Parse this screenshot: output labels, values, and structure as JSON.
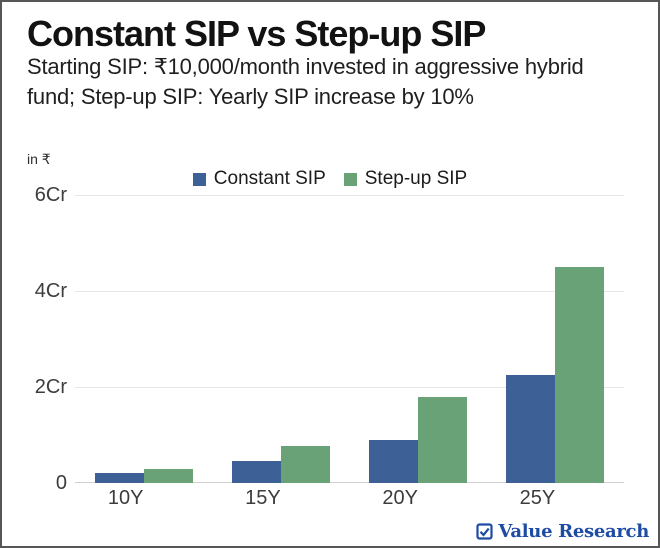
{
  "header": {
    "title": "Constant SIP vs Step-up SIP",
    "subtitle_lines": [
      "Starting SIP: ₹10,000/month invested in aggressive hybrid",
      "fund; Step-up SIP: Yearly SIP increase by 10%"
    ]
  },
  "chart_data": {
    "type": "bar",
    "title": "Constant SIP vs Step-up SIP",
    "unit_label": "in ₹",
    "categories": [
      "10Y",
      "15Y",
      "20Y",
      "25Y"
    ],
    "series": [
      {
        "name": "Constant SIP",
        "color": "#3d6197",
        "values": [
          0.2,
          0.45,
          0.9,
          2.25
        ]
      },
      {
        "name": "Step-up SIP",
        "color": "#68a276",
        "values": [
          0.3,
          0.78,
          1.8,
          4.5
        ]
      }
    ],
    "y_axis": {
      "labels": [
        "6Cr",
        "4Cr",
        "2Cr",
        "0"
      ],
      "values": [
        6,
        4,
        2,
        0
      ],
      "max": 6,
      "unit": "Cr (₹)"
    },
    "xlabel": "",
    "ylabel": "in ₹",
    "ylim": [
      0,
      6
    ],
    "grid": true,
    "legend_position": "top"
  },
  "footer": {
    "logo_text": "Value Research",
    "logo_color": "#1e4ba3",
    "logo_icon": "checked-box"
  }
}
